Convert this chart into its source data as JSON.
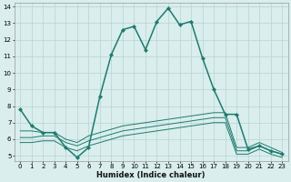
{
  "xlabel": "Humidex (Indice chaleur)",
  "xlim": [
    -0.5,
    23.5
  ],
  "ylim": [
    4.7,
    14.2
  ],
  "yticks": [
    5,
    6,
    7,
    8,
    9,
    10,
    11,
    12,
    13,
    14
  ],
  "xticks": [
    0,
    1,
    2,
    3,
    4,
    5,
    6,
    7,
    8,
    9,
    10,
    11,
    12,
    13,
    14,
    15,
    16,
    17,
    18,
    19,
    20,
    21,
    22,
    23
  ],
  "background_color": "#d9eeed",
  "grid_color": "#b8d4d2",
  "line_color": "#1e7b6e",
  "main_line": {
    "x": [
      0,
      1,
      2,
      3,
      4,
      5,
      6,
      7,
      8,
      9,
      10,
      11,
      12,
      13,
      14,
      15,
      16,
      17,
      18,
      19,
      20,
      21,
      22,
      23
    ],
    "y": [
      7.8,
      6.8,
      6.4,
      6.4,
      5.5,
      4.9,
      5.5,
      8.6,
      11.1,
      12.6,
      12.8,
      11.4,
      13.1,
      13.9,
      12.9,
      13.1,
      10.9,
      9.0,
      7.5,
      7.5,
      5.4,
      5.6,
      5.3,
      5.1
    ],
    "linewidth": 1.1,
    "markersize": 2.2
  },
  "fan_lines": [
    {
      "x": [
        0,
        1,
        2,
        3,
        4,
        5,
        6,
        7,
        8,
        9,
        10,
        11,
        12,
        13,
        14,
        15,
        16,
        17,
        18,
        19,
        20,
        21,
        22,
        23
      ],
      "y": [
        6.5,
        6.5,
        6.4,
        6.4,
        6.0,
        5.8,
        6.2,
        6.4,
        6.6,
        6.8,
        6.9,
        7.0,
        7.1,
        7.2,
        7.3,
        7.4,
        7.5,
        7.6,
        7.6,
        5.5,
        5.5,
        5.8,
        5.5,
        5.2
      ]
    },
    {
      "x": [
        0,
        1,
        2,
        3,
        4,
        5,
        6,
        7,
        8,
        9,
        10,
        11,
        12,
        13,
        14,
        15,
        16,
        17,
        18,
        19,
        20,
        21,
        22,
        23
      ],
      "y": [
        6.1,
        6.1,
        6.2,
        6.2,
        5.8,
        5.6,
        5.9,
        6.1,
        6.3,
        6.5,
        6.6,
        6.7,
        6.8,
        6.9,
        7.0,
        7.1,
        7.2,
        7.3,
        7.3,
        5.3,
        5.3,
        5.6,
        5.3,
        5.1
      ]
    },
    {
      "x": [
        0,
        1,
        2,
        3,
        4,
        5,
        6,
        7,
        8,
        9,
        10,
        11,
        12,
        13,
        14,
        15,
        16,
        17,
        18,
        19,
        20,
        21,
        22,
        23
      ],
      "y": [
        5.8,
        5.8,
        5.9,
        5.9,
        5.5,
        5.3,
        5.6,
        5.8,
        6.0,
        6.2,
        6.3,
        6.4,
        6.5,
        6.6,
        6.7,
        6.8,
        6.9,
        7.0,
        7.0,
        5.1,
        5.1,
        5.4,
        5.1,
        4.9
      ]
    }
  ]
}
